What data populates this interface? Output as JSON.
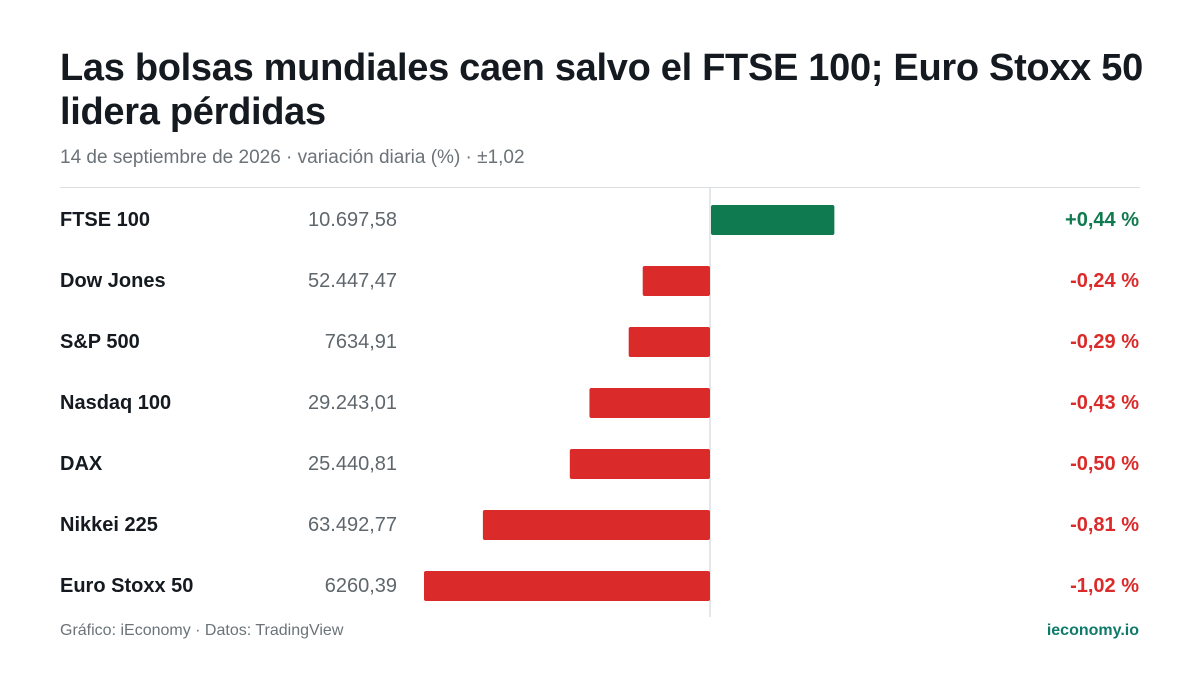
{
  "header": {
    "title": "Las bolsas mundiales caen salvo el FTSE 100; Euro Stoxx 50 lidera pérdidas",
    "subtitle": "14 de septiembre de 2026 · variación diaria (%) · ±1,02"
  },
  "footer": {
    "source": "Gráfico: iEconomy · Datos: TradingView",
    "brand": "ieconomy.io"
  },
  "colors": {
    "positive": "#0f7a4f",
    "negative": "#db2a2a",
    "axis": "#dcdfe2"
  },
  "chart_data": {
    "type": "bar",
    "orientation": "horizontal",
    "xlim": [
      -1.02,
      1.02
    ],
    "categories": [
      "FTSE 100",
      "Dow Jones",
      "S&P 500",
      "Nasdaq 100",
      "DAX",
      "Nikkei 225",
      "Euro Stoxx 50"
    ],
    "levels": [
      "10.697,58",
      "52.447,47",
      "7634,91",
      "29.243,01",
      "25.440,81",
      "63.492,77",
      "6260,39"
    ],
    "values": [
      0.44,
      -0.24,
      -0.29,
      -0.43,
      -0.5,
      -0.81,
      -1.02
    ],
    "value_labels": [
      "+0,44 %",
      "-0,24 %",
      "-0,29 %",
      "-0,43 %",
      "-0,50 %",
      "-0,81 %",
      "-1,02 %"
    ]
  }
}
